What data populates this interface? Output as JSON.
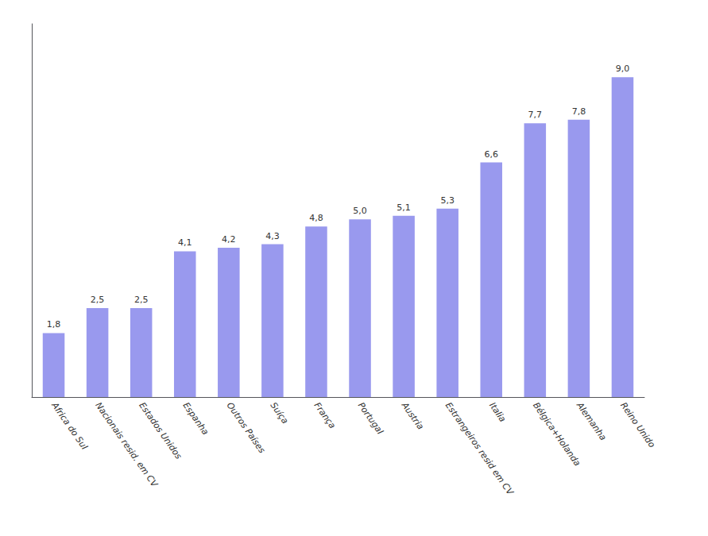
{
  "chart_data": {
    "type": "bar",
    "categories": [
      "Africa do Sul",
      "Nacionais resid. em CV",
      "Estados Unidos",
      "Espanha",
      "Outros Países",
      "Suíça",
      "França",
      "Portugal",
      "Austria",
      "Estrangeiros resid em CV",
      "Italia",
      "Bélgica+Holanda",
      "Alemanha",
      "Reino Unido"
    ],
    "values": [
      1.8,
      2.5,
      2.5,
      4.1,
      4.2,
      4.3,
      4.8,
      5.0,
      5.1,
      5.3,
      6.6,
      7.7,
      7.8,
      9.0
    ],
    "value_labels": [
      "1,8",
      "2,5",
      "2,5",
      "4,1",
      "4,2",
      "4,3",
      "4,8",
      "5,0",
      "5,1",
      "5,3",
      "6,6",
      "7,7",
      "7,8",
      "9,0"
    ],
    "data_labels": true,
    "color": "#9999ee",
    "ylim": [
      0,
      10.5
    ],
    "grid": false,
    "tick_labels": "x"
  }
}
